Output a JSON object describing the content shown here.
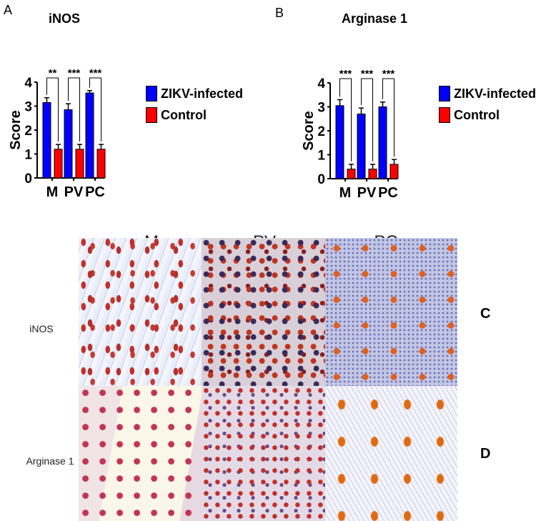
{
  "panels": {
    "a": "A",
    "b": "B",
    "c": "C",
    "d": "D"
  },
  "micrographs": {
    "columns": [
      "M",
      "PV",
      "PC"
    ],
    "rows": [
      "iNOS",
      "Arginase 1"
    ]
  },
  "colors": {
    "zikv": "#0000ff",
    "control": "#ff0000"
  },
  "chart_data": [
    {
      "type": "bar",
      "title": "iNOS",
      "ylabel": "Score",
      "ylim": [
        0,
        4
      ],
      "yticks": [
        0,
        1,
        2,
        3,
        4
      ],
      "categories": [
        "M",
        "PV",
        "PC"
      ],
      "series": [
        {
          "name": "ZIKV-infected",
          "values": [
            3.15,
            2.85,
            3.55
          ],
          "errors": [
            0.2,
            0.25,
            0.1
          ]
        },
        {
          "name": "Control",
          "values": [
            1.2,
            1.2,
            1.2
          ],
          "errors": [
            0.2,
            0.2,
            0.2
          ]
        }
      ],
      "significance": [
        "**",
        "***",
        "***"
      ],
      "legend": "right"
    },
    {
      "type": "bar",
      "title": "Arginase 1",
      "ylabel": "Score",
      "ylim": [
        0,
        4
      ],
      "yticks": [
        0,
        1,
        2,
        3,
        4
      ],
      "categories": [
        "M",
        "PV",
        "PC"
      ],
      "series": [
        {
          "name": "ZIKV-infected",
          "values": [
            3.05,
            2.7,
            3.0
          ],
          "errors": [
            0.25,
            0.25,
            0.2
          ]
        },
        {
          "name": "Control",
          "values": [
            0.4,
            0.4,
            0.6
          ],
          "errors": [
            0.2,
            0.2,
            0.2
          ]
        }
      ],
      "significance": [
        "***",
        "***",
        "***"
      ],
      "legend": "right"
    }
  ]
}
